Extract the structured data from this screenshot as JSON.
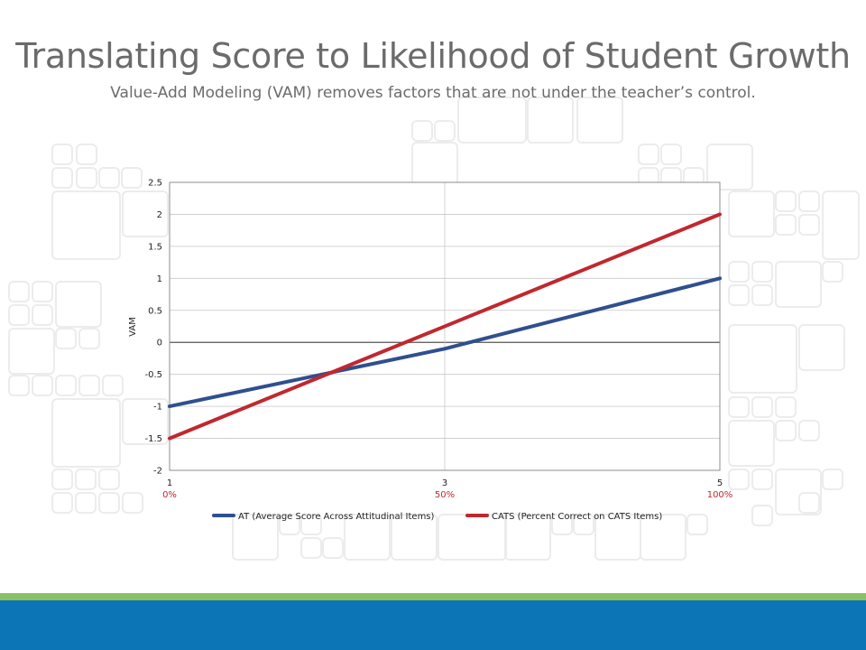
{
  "slide": {
    "title": "Translating Score to Likelihood of Student Growth",
    "subtitle": "Value-Add Modeling (VAM) removes factors that are not under the teacher’s control."
  },
  "colors": {
    "title": "#6b6b6b",
    "footer_green": "#8dc063",
    "footer_blue": "#0b75b5",
    "series_at": "#2f4f8f",
    "series_cats": "#c0282f"
  },
  "chart_data": {
    "type": "line",
    "title": "",
    "xlabel": "",
    "ylabel": "VAM",
    "xlim": [
      1,
      5
    ],
    "ylim": [
      -2,
      2.5
    ],
    "x_ticks": [
      "1",
      "3",
      "5"
    ],
    "x_tick_values": [
      1,
      3,
      5
    ],
    "x_secondary_labels": [
      "0%",
      "50%",
      "100%"
    ],
    "y_ticks": [
      "2.5",
      "2",
      "1.5",
      "1",
      "0.5",
      "0",
      "-0.5",
      "-1",
      "-1.5",
      "-2"
    ],
    "y_tick_values": [
      2.5,
      2,
      1.5,
      1,
      0.5,
      0,
      -0.5,
      -1,
      -1.5,
      -2
    ],
    "grid": "vertical-and-horizontal",
    "legend_position": "bottom",
    "series": [
      {
        "name": "AT (Average Score Across Attitudinal Items)",
        "color": "#2f4f8f",
        "x": [
          1,
          3,
          5
        ],
        "y": [
          -1,
          -0.1,
          1
        ]
      },
      {
        "name": "CATS (Percent Correct on CATS Items)",
        "color": "#c0282f",
        "x": [
          1,
          5
        ],
        "y": [
          -1.5,
          2
        ]
      }
    ]
  }
}
